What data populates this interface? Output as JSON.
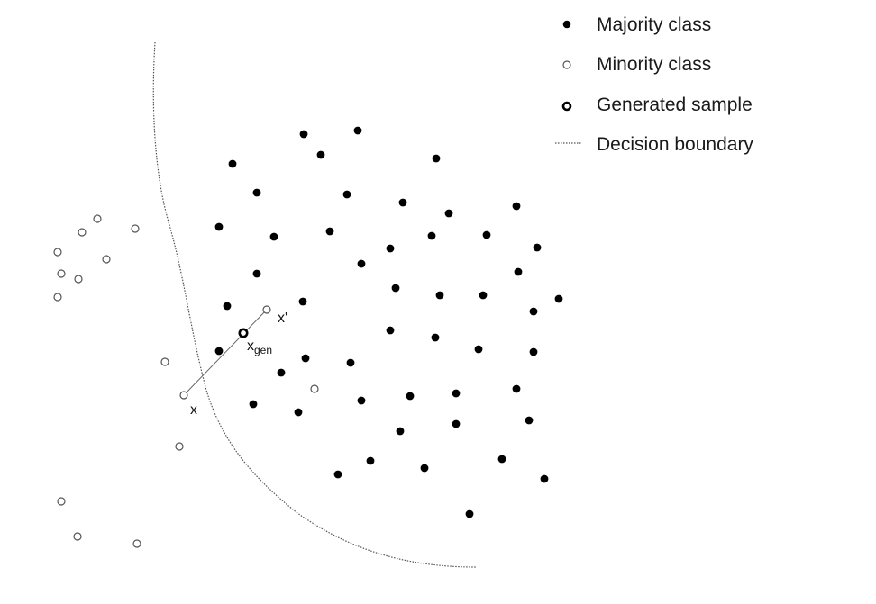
{
  "colors": {
    "majority_fill": "#000000",
    "minority_stroke": "#555555",
    "generated_stroke": "#000000",
    "boundary": "#555555",
    "text": "#1a1a1a"
  },
  "legend": {
    "majority": "Majority class",
    "minority": "Minority class",
    "generated": "Generated sample",
    "boundary": "Decision boundary"
  },
  "labels": {
    "x": "x",
    "x_prime": "x'",
    "x_gen_main": "x",
    "x_gen_sub": "gen"
  }
}
